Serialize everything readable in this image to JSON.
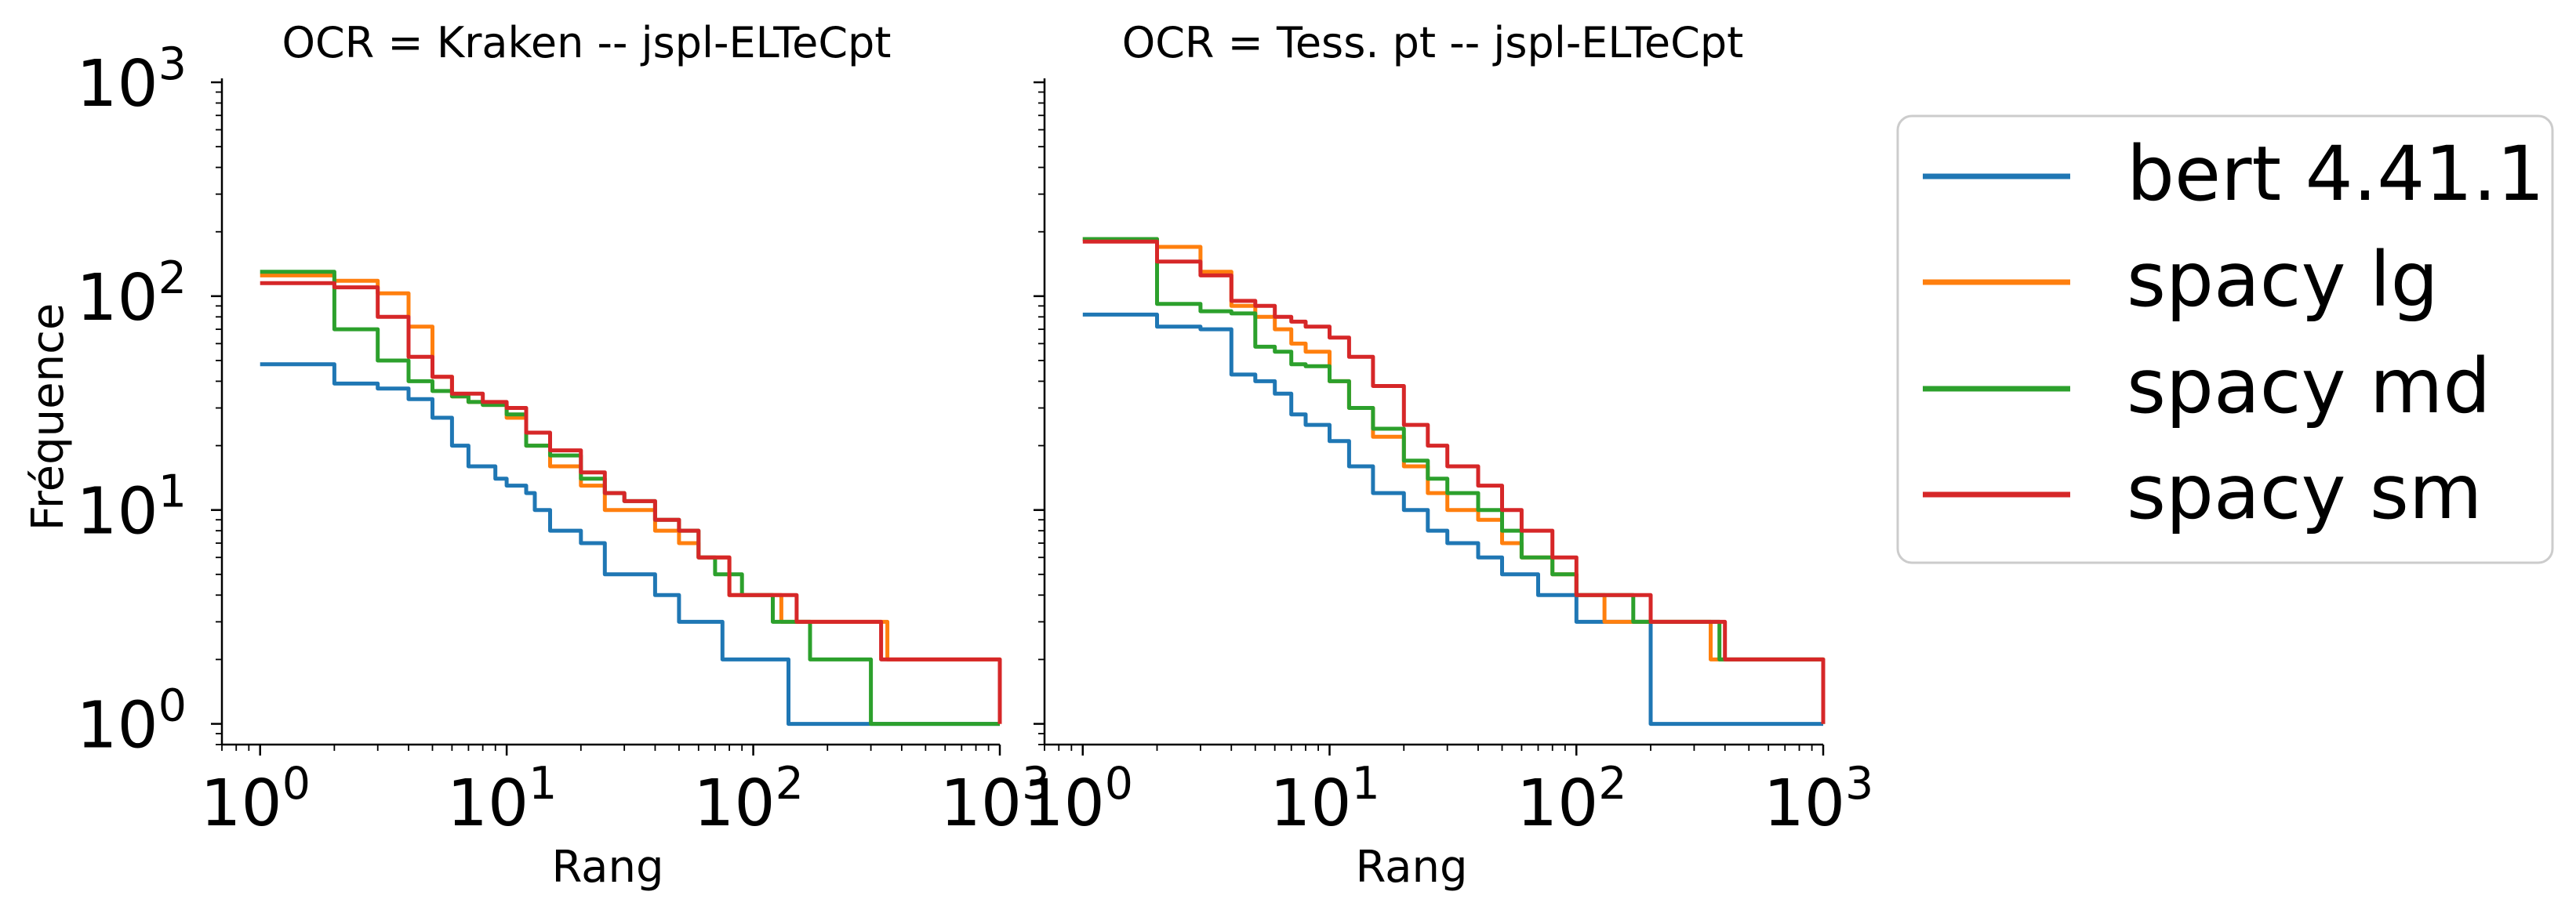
{
  "figure": {
    "ylabel": "Fréquence",
    "legend": [
      "bert 4.41.1",
      "spacy lg",
      "spacy md",
      "spacy sm"
    ],
    "legend_location": "right, outside",
    "colors": {
      "bert 4.41.1": "#1f77b4",
      "spacy lg": "#ff7f0e",
      "spacy md": "#2ca02c",
      "spacy sm": "#d62728"
    }
  },
  "chart_data": [
    {
      "type": "line",
      "title": "OCR = Kraken -- jspl-ELTeCpt",
      "xlabel": "Rang",
      "ylabel": "Fréquence",
      "xscale": "log",
      "yscale": "log",
      "xlim": [
        0.7,
        1000
      ],
      "ylim": [
        0.8,
        1000
      ],
      "xticks": [
        "10^0",
        "10^1",
        "10^2",
        "10^3"
      ],
      "yticks": [
        "10^0",
        "10^1",
        "10^2",
        "10^3"
      ],
      "grid": false,
      "series": [
        {
          "name": "bert 4.41.1",
          "x": [
            1,
            2,
            3,
            4,
            5,
            6,
            7,
            8,
            9,
            10,
            11,
            12,
            13,
            15,
            17,
            20,
            25,
            30,
            40,
            50,
            75,
            139,
            1000
          ],
          "y": [
            48,
            39,
            37,
            33,
            27,
            20,
            16,
            16,
            14,
            13,
            13,
            12,
            10,
            8,
            8,
            7,
            5,
            5,
            4,
            3,
            2,
            1,
            1
          ]
        },
        {
          "name": "spacy lg",
          "x": [
            1,
            2,
            3,
            4,
            5,
            6,
            7,
            8,
            10,
            12,
            15,
            20,
            25,
            30,
            40,
            50,
            60,
            80,
            100,
            130,
            180,
            350,
            1000
          ],
          "y": [
            125,
            118,
            103,
            72,
            42,
            34,
            32,
            31,
            27,
            20,
            16,
            13,
            10,
            10,
            8,
            7,
            6,
            4,
            4,
            3,
            3,
            2,
            1
          ]
        },
        {
          "name": "spacy md",
          "x": [
            1,
            1.5,
            2,
            3,
            4,
            5,
            6,
            7,
            8,
            10,
            12,
            15,
            20,
            25,
            30,
            40,
            50,
            60,
            70,
            90,
            120,
            170,
            300,
            1000
          ],
          "y": [
            130,
            130,
            70,
            50,
            40,
            36,
            34,
            32,
            31,
            28,
            20,
            18,
            14,
            12,
            11,
            9,
            8,
            6,
            5,
            4,
            3,
            2,
            1,
            1
          ]
        },
        {
          "name": "spacy sm",
          "x": [
            1,
            2,
            3,
            4,
            5,
            6,
            8,
            10,
            12,
            15,
            20,
            25,
            30,
            40,
            50,
            60,
            80,
            100,
            150,
            330,
            1000
          ],
          "y": [
            115,
            110,
            80,
            52,
            42,
            35,
            32,
            30,
            23,
            19,
            15,
            12,
            11,
            9,
            8,
            6,
            4,
            4,
            3,
            2,
            1
          ]
        }
      ]
    },
    {
      "type": "line",
      "title": "OCR = Tess. pt -- jspl-ELTeCpt",
      "xlabel": "Rang",
      "xscale": "log",
      "yscale": "log",
      "xlim": [
        0.7,
        1000
      ],
      "ylim": [
        0.8,
        1000
      ],
      "xticks": [
        "10^0",
        "10^1",
        "10^2",
        "10^3"
      ],
      "grid": false,
      "series": [
        {
          "name": "bert 4.41.1",
          "x": [
            1,
            2,
            3,
            4,
            5,
            6,
            7,
            8,
            10,
            12,
            15,
            20,
            25,
            30,
            40,
            50,
            70,
            100,
            200,
            1000
          ],
          "y": [
            82,
            72,
            70,
            43,
            40,
            35,
            28,
            25,
            21,
            16,
            12,
            10,
            8,
            7,
            6,
            5,
            4,
            3,
            1,
            1
          ]
        },
        {
          "name": "spacy lg",
          "x": [
            1,
            2,
            3,
            4,
            5,
            6,
            7,
            8,
            10,
            12,
            15,
            20,
            25,
            30,
            40,
            50,
            60,
            80,
            100,
            130,
            170,
            350,
            1000
          ],
          "y": [
            185,
            170,
            130,
            90,
            80,
            70,
            60,
            55,
            40,
            30,
            22,
            16,
            12,
            10,
            9,
            7,
            6,
            5,
            4,
            3,
            3,
            2,
            1
          ]
        },
        {
          "name": "spacy md",
          "x": [
            1,
            1.5,
            2,
            3,
            4,
            5,
            6,
            7,
            8,
            10,
            12,
            15,
            20,
            25,
            30,
            40,
            50,
            60,
            80,
            100,
            170,
            380,
            1000
          ],
          "y": [
            185,
            185,
            92,
            85,
            83,
            58,
            55,
            48,
            47,
            40,
            30,
            24,
            17,
            14,
            12,
            10,
            8,
            6,
            5,
            4,
            3,
            2,
            1
          ]
        },
        {
          "name": "spacy sm",
          "x": [
            1,
            2,
            3,
            4,
            5,
            6,
            7,
            8,
            10,
            12,
            15,
            20,
            25,
            30,
            40,
            50,
            60,
            80,
            100,
            150,
            200,
            400,
            1000
          ],
          "y": [
            180,
            145,
            125,
            95,
            90,
            80,
            76,
            72,
            64,
            52,
            38,
            25,
            20,
            16,
            13,
            10,
            8,
            6,
            4,
            4,
            3,
            2,
            1
          ]
        }
      ]
    }
  ]
}
